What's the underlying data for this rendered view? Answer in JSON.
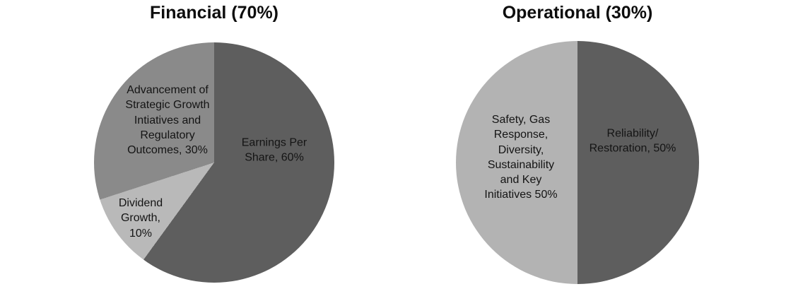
{
  "page": {
    "background_color": "#ffffff",
    "text_color": "#141414"
  },
  "chart_data": [
    {
      "type": "pie",
      "title": "Financial (70%)",
      "weight_pct": 70,
      "start_angle_deg": 0,
      "direction": "clockwise",
      "legend": "none",
      "labels_position": "inside",
      "slices": [
        {
          "name": "Earnings Per Share",
          "value_pct": 60,
          "color": "#5e5e5e",
          "label_text": "Earnings Per\nShare, 60%"
        },
        {
          "name": "Dividend Growth",
          "value_pct": 10,
          "color": "#b9b9b9",
          "label_text": "Dividend\nGrowth,\n10%"
        },
        {
          "name": "Advancement of Strategic Growth Intiatives and Regulatory Outcomes",
          "value_pct": 30,
          "color": "#8a8a8a",
          "label_text": "Advancement of\nStrategic Growth\nIntiatives and\nRegulatory\nOutcomes, 30%"
        }
      ]
    },
    {
      "type": "pie",
      "title": "Operational (30%)",
      "weight_pct": 30,
      "start_angle_deg": 0,
      "direction": "clockwise",
      "legend": "none",
      "labels_position": "inside",
      "slices": [
        {
          "name": "Reliability/Restoration",
          "value_pct": 50,
          "color": "#5e5e5e",
          "label_text": "Reliability/\nRestoration, 50%"
        },
        {
          "name": "Safety, Gas Response, Diversity, Sustainability and Key Initiatives",
          "value_pct": 50,
          "color": "#b3b3b3",
          "label_text": "Safety, Gas\nResponse,\nDiversity,\nSustainability\nand Key\nInitiatives 50%"
        }
      ]
    }
  ]
}
